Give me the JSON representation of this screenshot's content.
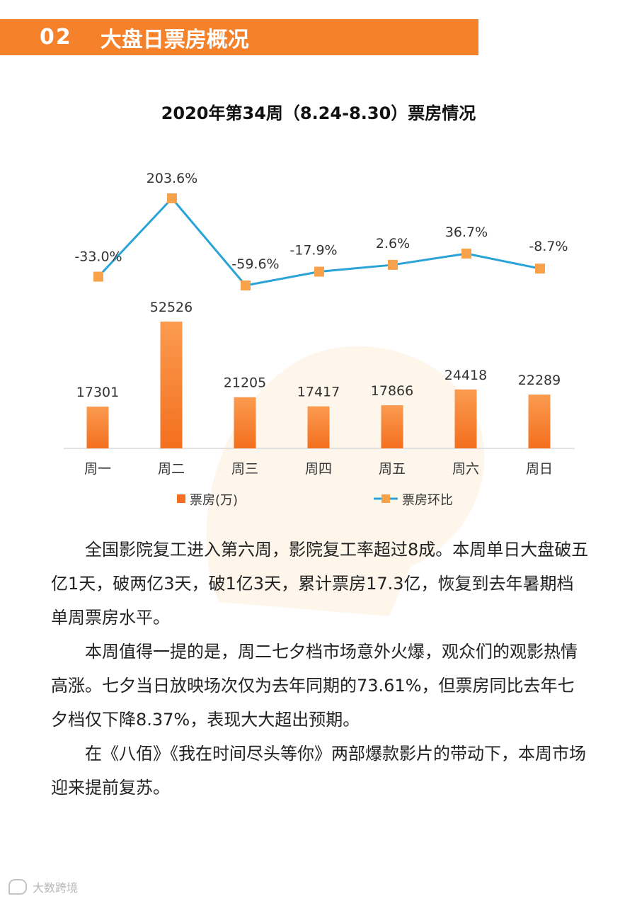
{
  "section": {
    "number": "02",
    "title": "大盘日票房概况"
  },
  "chart_data": {
    "type": "bar+line",
    "title": "2020年第34周（8.24-8.30）票房情况",
    "categories": [
      "周一",
      "周二",
      "周三",
      "周四",
      "周五",
      "周六",
      "周日"
    ],
    "series": [
      {
        "name": "票房(万)",
        "type": "bar",
        "values": [
          17301,
          52526,
          21205,
          17417,
          17866,
          24418,
          22289
        ],
        "labels": [
          "17301",
          "52526",
          "21205",
          "17417",
          "17866",
          "24418",
          "22289"
        ]
      },
      {
        "name": "票房环比",
        "type": "line",
        "values": [
          -33.0,
          203.6,
          -59.6,
          -17.9,
          2.6,
          36.7,
          -8.7
        ],
        "labels": [
          "-33.0%",
          "203.6%",
          "-59.6%",
          "-17.9%",
          "2.6%",
          "36.7%",
          "-8.7%"
        ]
      }
    ],
    "legend": [
      "票房(万)",
      "票房环比"
    ],
    "colors": {
      "bar": "#f36f1e",
      "bar_light": "#fb9b50",
      "line": "#2aa3d6",
      "marker": "#f7a24a"
    }
  },
  "paragraphs": [
    "全国影院复工进入第六周，影院复工率超过8成。本周单日大盘破五亿1天，破两亿3天，破1亿3天，累计票房17.3亿，恢复到去年暑期档单周票房水平。",
    "本周值得一提的是，周二七夕档市场意外火爆，观众们的观影热情高涨。七夕当日放映场次仅为去年同期的73.61%，但票房同比去年七夕档仅下降8.37%，表现大大超出预期。",
    "在《八佰》《我在时间尽头等你》两部爆款影片的带动下，本周市场迎来提前复苏。"
  ],
  "footer": {
    "brand": "大数跨境"
  }
}
